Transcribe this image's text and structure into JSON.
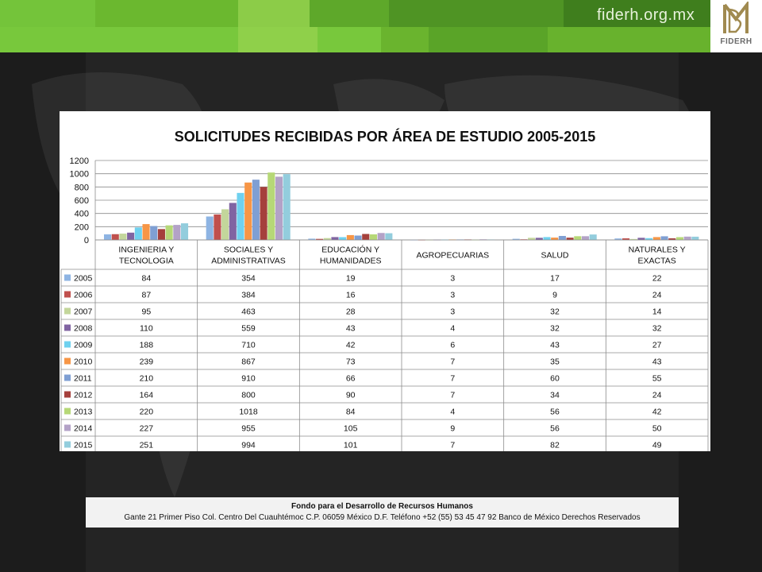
{
  "header": {
    "site": "fiderh.org.mx",
    "logo_text": "FIDERH"
  },
  "footer": {
    "org": "Fondo para el Desarrollo de Recursos Humanos",
    "address": "Gante 21 Primer Piso Col. Centro Del Cuauhtémoc C.P. 06059 México D.F. Teléfono +52 (55) 53 45 47 92 Banco de México Derechos Reservados"
  },
  "chart_data": {
    "type": "bar",
    "title": "SOLICITUDES RECIBIDAS POR ÁREA DE ESTUDIO 2005-2015",
    "categories": [
      "INGENIERIA Y TECNOLOGIA",
      "SOCIALES Y ADMINISTRATIVAS",
      "EDUCACIÓN Y HUMANIDADES",
      "AGROPECUARIAS",
      "SALUD",
      "NATURALES Y EXACTAS"
    ],
    "ylim": [
      0,
      1200
    ],
    "yticks": [
      0,
      200,
      400,
      600,
      800,
      1000,
      1200
    ],
    "grid": true,
    "legend": "data-table",
    "series": [
      {
        "name": "2005",
        "color": "#8eb4e3",
        "values": [
          84,
          354,
          19,
          3,
          17,
          22
        ]
      },
      {
        "name": "2006",
        "color": "#c0504d",
        "values": [
          87,
          384,
          16,
          3,
          9,
          24
        ]
      },
      {
        "name": "2007",
        "color": "#c3d69b",
        "values": [
          95,
          463,
          28,
          3,
          32,
          14
        ]
      },
      {
        "name": "2008",
        "color": "#8064a2",
        "values": [
          110,
          559,
          43,
          4,
          32,
          32
        ]
      },
      {
        "name": "2009",
        "color": "#6fd1ef",
        "values": [
          188,
          710,
          42,
          6,
          43,
          27
        ]
      },
      {
        "name": "2010",
        "color": "#f79646",
        "values": [
          239,
          867,
          73,
          7,
          35,
          43
        ]
      },
      {
        "name": "2011",
        "color": "#7f9fd3",
        "values": [
          210,
          910,
          66,
          7,
          60,
          55
        ]
      },
      {
        "name": "2012",
        "color": "#a5403c",
        "values": [
          164,
          800,
          90,
          7,
          34,
          24
        ]
      },
      {
        "name": "2013",
        "color": "#b6d877",
        "values": [
          220,
          1018,
          84,
          4,
          56,
          42
        ]
      },
      {
        "name": "2014",
        "color": "#b3a2c7",
        "values": [
          227,
          955,
          105,
          9,
          56,
          50
        ]
      },
      {
        "name": "2015",
        "color": "#93cddd",
        "values": [
          251,
          994,
          101,
          7,
          82,
          49
        ]
      }
    ]
  }
}
